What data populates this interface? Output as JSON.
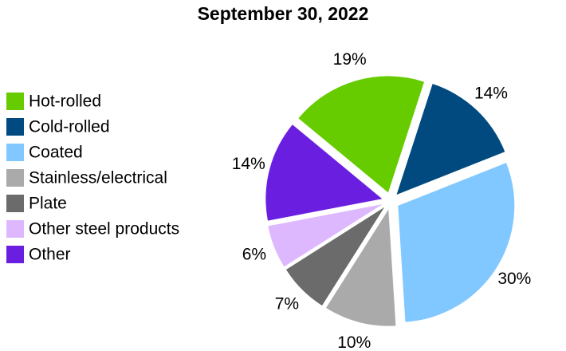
{
  "chart_data": {
    "type": "pie",
    "title": "September 30, 2022",
    "categories": [
      "Hot-rolled",
      "Cold-rolled",
      "Coated",
      "Stainless/electrical",
      "Plate",
      "Other steel products",
      "Other"
    ],
    "values": [
      19,
      14,
      30,
      10,
      7,
      6,
      14
    ],
    "value_labels": [
      "19%",
      "14%",
      "30%",
      "10%",
      "7%",
      "6%",
      "14%"
    ],
    "colors": [
      "#66cc00",
      "#004a80",
      "#80c8ff",
      "#aaaaaa",
      "#6b6b6b",
      "#ddb8ff",
      "#6a1fe0"
    ],
    "legend": "left"
  }
}
